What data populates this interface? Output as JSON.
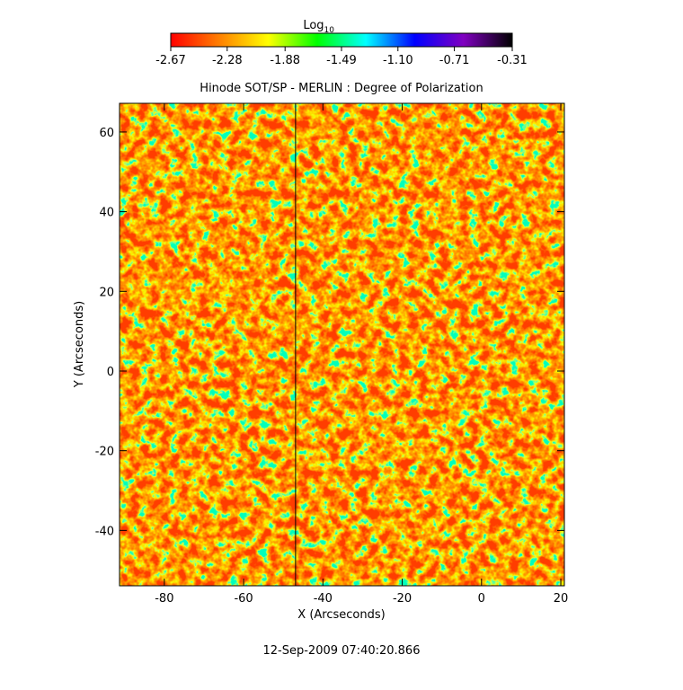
{
  "chart_data": {
    "type": "heatmap",
    "title": "Hinode SOT/SP - MERLIN : Degree of Polarization",
    "x_label": "X (Arcseconds)",
    "y_label": "Y (Arcseconds)",
    "footer": "12-Sep-2009 07:40:20.866",
    "xlim": [
      -91.3,
      20.9
    ],
    "ylim": [
      -53.9,
      67.2
    ],
    "xticks": [
      -80,
      -60,
      -40,
      -20,
      0,
      20
    ],
    "yticks": [
      -40,
      -20,
      0,
      20,
      40,
      60
    ],
    "vline": -46.9,
    "colorbar": {
      "label": "Log",
      "label_subscript": "10",
      "lim": [
        -2.67,
        -0.31
      ],
      "ticks": [
        -2.67,
        -2.28,
        -1.88,
        -1.49,
        {
          "value": -1.1,
          "label": "-1.10"
        },
        -0.71,
        -0.31
      ],
      "colormap": [
        "#ff0000",
        "#ff8000",
        "#ffff00",
        "#00ff00",
        "#00ffff",
        "#0000ff",
        "#8000c0",
        "#000000"
      ]
    }
  }
}
